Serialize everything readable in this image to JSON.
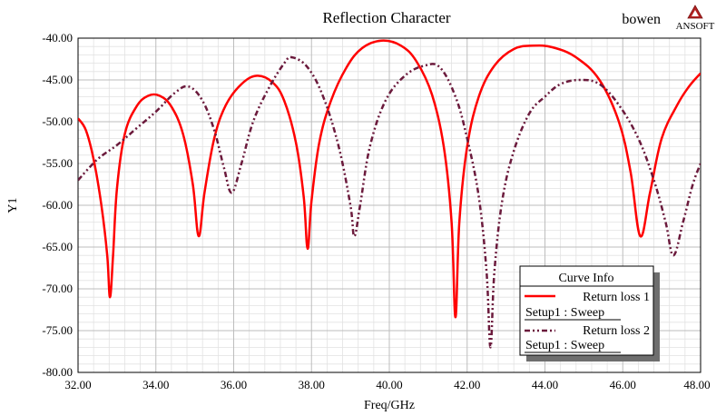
{
  "author_label": "bowen",
  "logo": {
    "text": "ANSOFT",
    "color": "#b22222"
  },
  "chart_data": {
    "type": "line",
    "title": "Reflection Character",
    "xlabel": "Freq/GHz",
    "ylabel": "Y1",
    "xlim": [
      32,
      48
    ],
    "ylim": [
      -80,
      -40
    ],
    "grid": true,
    "x_ticks": [
      "32.00",
      "34.00",
      "36.00",
      "38.00",
      "40.00",
      "42.00",
      "44.00",
      "46.00",
      "48.00"
    ],
    "y_ticks": [
      "-40.00",
      "-45.00",
      "-50.00",
      "-55.00",
      "-60.00",
      "-65.00",
      "-70.00",
      "-75.00",
      "-80.00"
    ],
    "legend": {
      "title": "Curve Info",
      "placement": "bottom-right",
      "entries": [
        {
          "name": "Return loss 1",
          "sub": "Setup1 : Sweep"
        },
        {
          "name": "Return loss 2",
          "sub": "Setup1 : Sweep"
        }
      ]
    },
    "series": [
      {
        "name": "Return loss 1",
        "color": "#ff0000",
        "style": "solid",
        "points": [
          [
            32.0,
            -49.6
          ],
          [
            32.2,
            -51.0
          ],
          [
            32.4,
            -54.5
          ],
          [
            32.6,
            -60.0
          ],
          [
            32.75,
            -66.0
          ],
          [
            32.82,
            -71.0
          ],
          [
            32.9,
            -66.0
          ],
          [
            33.0,
            -58.0
          ],
          [
            33.2,
            -51.5
          ],
          [
            33.5,
            -48.2
          ],
          [
            33.8,
            -46.9
          ],
          [
            34.1,
            -46.9
          ],
          [
            34.4,
            -48.2
          ],
          [
            34.7,
            -51.5
          ],
          [
            34.95,
            -57.5
          ],
          [
            35.1,
            -63.7
          ],
          [
            35.25,
            -58.5
          ],
          [
            35.5,
            -52.0
          ],
          [
            35.8,
            -48.0
          ],
          [
            36.2,
            -45.5
          ],
          [
            36.6,
            -44.5
          ],
          [
            37.0,
            -45.3
          ],
          [
            37.3,
            -47.5
          ],
          [
            37.6,
            -52.5
          ],
          [
            37.8,
            -59.0
          ],
          [
            37.9,
            -65.2
          ],
          [
            38.0,
            -59.5
          ],
          [
            38.2,
            -52.5
          ],
          [
            38.5,
            -47.5
          ],
          [
            38.9,
            -43.5
          ],
          [
            39.3,
            -41.2
          ],
          [
            39.8,
            -40.3
          ],
          [
            40.3,
            -40.9
          ],
          [
            40.7,
            -42.8
          ],
          [
            41.1,
            -46.8
          ],
          [
            41.4,
            -53.0
          ],
          [
            41.6,
            -62.0
          ],
          [
            41.7,
            -73.4
          ],
          [
            41.8,
            -62.0
          ],
          [
            42.0,
            -53.0
          ],
          [
            42.3,
            -47.0
          ],
          [
            42.7,
            -43.3
          ],
          [
            43.2,
            -41.3
          ],
          [
            43.7,
            -40.9
          ],
          [
            44.2,
            -41.1
          ],
          [
            44.8,
            -42.3
          ],
          [
            45.4,
            -45.0
          ],
          [
            45.9,
            -50.0
          ],
          [
            46.2,
            -56.0
          ],
          [
            46.45,
            -63.7
          ],
          [
            46.7,
            -58.5
          ],
          [
            47.0,
            -52.0
          ],
          [
            47.4,
            -48.0
          ],
          [
            47.7,
            -45.8
          ],
          [
            48.0,
            -44.2
          ]
        ]
      },
      {
        "name": "Return loss 2",
        "color": "#6b1a3c",
        "style": "dash-dot-dot",
        "points": [
          [
            32.0,
            -57.0
          ],
          [
            32.5,
            -54.5
          ],
          [
            33.0,
            -52.8
          ],
          [
            33.5,
            -50.8
          ],
          [
            34.0,
            -48.8
          ],
          [
            34.5,
            -46.5
          ],
          [
            34.85,
            -45.8
          ],
          [
            35.2,
            -47.5
          ],
          [
            35.5,
            -51.0
          ],
          [
            35.75,
            -55.5
          ],
          [
            35.95,
            -58.5
          ],
          [
            36.2,
            -55.0
          ],
          [
            36.5,
            -50.0
          ],
          [
            36.9,
            -46.0
          ],
          [
            37.3,
            -43.0
          ],
          [
            37.5,
            -42.3
          ],
          [
            37.9,
            -43.5
          ],
          [
            38.3,
            -47.0
          ],
          [
            38.7,
            -53.0
          ],
          [
            39.0,
            -60.0
          ],
          [
            39.1,
            -63.7
          ],
          [
            39.25,
            -60.0
          ],
          [
            39.5,
            -53.0
          ],
          [
            39.9,
            -47.5
          ],
          [
            40.4,
            -44.5
          ],
          [
            40.9,
            -43.3
          ],
          [
            41.3,
            -43.5
          ],
          [
            41.7,
            -47.0
          ],
          [
            42.0,
            -52.0
          ],
          [
            42.3,
            -59.0
          ],
          [
            42.5,
            -68.0
          ],
          [
            42.6,
            -77.0
          ],
          [
            42.7,
            -68.0
          ],
          [
            42.9,
            -59.5
          ],
          [
            43.2,
            -53.5
          ],
          [
            43.6,
            -49.0
          ],
          [
            44.0,
            -47.0
          ],
          [
            44.4,
            -45.5
          ],
          [
            44.9,
            -45.0
          ],
          [
            45.4,
            -45.5
          ],
          [
            45.9,
            -48.0
          ],
          [
            46.4,
            -52.0
          ],
          [
            46.8,
            -57.0
          ],
          [
            47.1,
            -62.0
          ],
          [
            47.3,
            -66.0
          ],
          [
            47.55,
            -62.0
          ],
          [
            47.8,
            -57.5
          ],
          [
            48.0,
            -55.0
          ]
        ]
      }
    ]
  }
}
